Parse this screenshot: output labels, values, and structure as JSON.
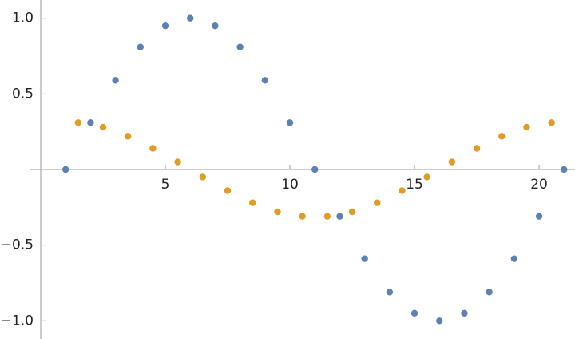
{
  "chart_data": {
    "type": "scatter",
    "series": [
      {
        "color": "#5e81b5",
        "x": [
          1,
          2,
          3,
          4,
          5,
          6,
          7,
          8,
          9,
          10,
          11,
          12,
          13,
          14,
          15,
          16,
          17,
          18,
          19,
          20,
          21
        ],
        "values": [
          0,
          0.31,
          0.59,
          0.81,
          0.95,
          1,
          0.95,
          0.81,
          0.59,
          0.31,
          0,
          -0.31,
          -0.59,
          -0.81,
          -0.95,
          -1,
          -0.95,
          -0.81,
          -0.59,
          -0.31,
          0
        ]
      },
      {
        "color": "#e19c24",
        "x": [
          1.5,
          2.5,
          3.5,
          4.5,
          5.5,
          6.5,
          7.5,
          8.5,
          9.5,
          10.5,
          11.5,
          12.5,
          13.5,
          14.5,
          15.5,
          16.5,
          17.5,
          18.5,
          19.5,
          20.5
        ],
        "values": [
          0.31,
          0.28,
          0.22,
          0.14,
          0.05,
          -0.05,
          -0.14,
          -0.22,
          -0.28,
          -0.31,
          -0.31,
          -0.28,
          -0.22,
          -0.14,
          -0.05,
          0.05,
          0.14,
          0.22,
          0.28,
          0.31
        ]
      }
    ],
    "xlim": [
      0,
      21.44
    ],
    "ylim": [
      -1.12,
      1.12
    ],
    "xticks": [
      5,
      10,
      15,
      20
    ],
    "yticks": [
      {
        "value": -1,
        "label": "−1.0"
      },
      {
        "value": -0.5,
        "label": "−0.5"
      },
      0.5,
      {
        "value": 1,
        "label": "1.0"
      }
    ]
  }
}
